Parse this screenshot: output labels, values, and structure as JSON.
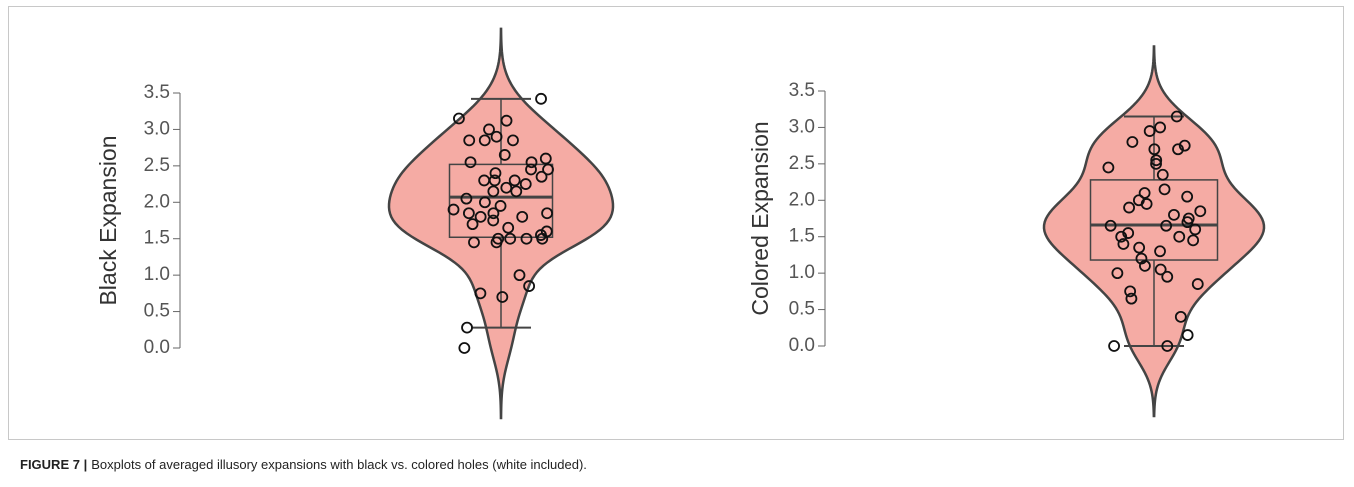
{
  "chart_data": [
    {
      "type": "violin",
      "ylabel": "Black Expansion",
      "color": "#f5aba4",
      "ylim": [
        0,
        3.5
      ],
      "yticks": [
        {
          "value": 0,
          "label": "0.0"
        },
        0.5,
        {
          "value": 1,
          "label": "1.0"
        },
        1.5,
        {
          "value": 2,
          "label": "2.0"
        },
        2.5,
        {
          "value": 3,
          "label": "3.0"
        },
        3.5
      ],
      "box": {
        "whisker_low": 0.28,
        "q1": 1.52,
        "median": 2.07,
        "q3": 2.52,
        "whisker_high": 3.42
      },
      "values": [
        3.42,
        3.15,
        3.12,
        3.0,
        2.9,
        2.85,
        2.85,
        2.85,
        2.65,
        2.6,
        2.55,
        2.55,
        2.45,
        2.45,
        2.4,
        2.35,
        2.3,
        2.3,
        2.3,
        2.25,
        2.2,
        2.15,
        2.15,
        2.05,
        2.0,
        1.95,
        1.9,
        1.85,
        1.85,
        1.85,
        1.8,
        1.8,
        1.75,
        1.7,
        1.65,
        1.6,
        1.55,
        1.5,
        1.5,
        1.5,
        1.5,
        1.45,
        1.45,
        1.0,
        0.85,
        0.75,
        0.7,
        0.28,
        0.0
      ]
    },
    {
      "type": "violin",
      "ylabel": "Colored Expansion",
      "color": "#f5aba4",
      "ylim": [
        0,
        3.5
      ],
      "yticks": [
        {
          "value": 0,
          "label": "0.0"
        },
        0.5,
        {
          "value": 1,
          "label": "1.0"
        },
        1.5,
        {
          "value": 2,
          "label": "2.0"
        },
        2.5,
        {
          "value": 3,
          "label": "3.0"
        },
        3.5
      ],
      "box": {
        "whisker_low": 0.0,
        "q1": 1.18,
        "median": 1.66,
        "q3": 2.28,
        "whisker_high": 3.15
      },
      "values": [
        3.15,
        3.0,
        2.95,
        2.8,
        2.75,
        2.7,
        2.7,
        2.55,
        2.5,
        2.45,
        2.35,
        2.15,
        2.1,
        2.05,
        2.0,
        1.95,
        1.9,
        1.85,
        1.8,
        1.75,
        1.7,
        1.65,
        1.65,
        1.6,
        1.55,
        1.5,
        1.5,
        1.45,
        1.4,
        1.35,
        1.3,
        1.2,
        1.1,
        1.05,
        1.0,
        0.95,
        0.85,
        0.75,
        0.65,
        0.4,
        0.15,
        0.0,
        0.0
      ]
    }
  ],
  "caption": {
    "label": "FIGURE 7 |",
    "text": "Boxplots of averaged illusory expansions with black vs. colored holes (white included)."
  }
}
